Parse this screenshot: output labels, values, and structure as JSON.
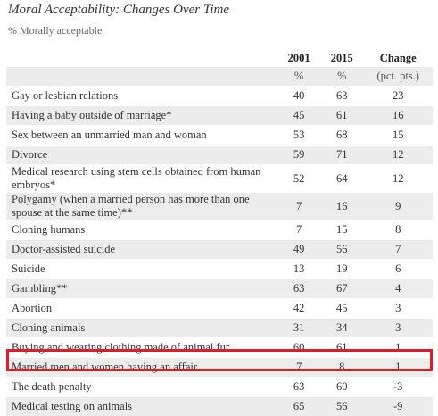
{
  "header": {
    "title": "Moral Acceptability: Changes Over Time",
    "subtitle": "% Morally acceptable"
  },
  "table": {
    "columns": [
      "2001",
      "2015",
      "Change"
    ],
    "units": [
      "%",
      "%",
      "(pct. pts.)"
    ],
    "rows": [
      [
        "Gay or lesbian relations",
        40,
        63,
        23
      ],
      [
        "Having a baby outside of marriage*",
        45,
        61,
        16
      ],
      [
        "Sex between an unmarried man and woman",
        53,
        68,
        15
      ],
      [
        "Divorce",
        59,
        71,
        12
      ],
      [
        "Medical research using stem cells obtained from human embryos*",
        52,
        64,
        12
      ],
      [
        "Polygamy (when a married person has more than one spouse at the same time)**",
        7,
        16,
        9
      ],
      [
        "Cloning humans",
        7,
        15,
        8
      ],
      [
        "Doctor-assisted suicide",
        49,
        56,
        7
      ],
      [
        "Suicide",
        13,
        19,
        6
      ],
      [
        "Gambling**",
        63,
        67,
        4
      ],
      [
        "Abortion",
        42,
        45,
        3
      ],
      [
        "Cloning animals",
        31,
        34,
        3
      ],
      [
        "Buying and wearing clothing made of animal fur",
        60,
        61,
        1
      ],
      [
        "Married men and women having an affair",
        7,
        8,
        1
      ],
      [
        "The death penalty",
        63,
        60,
        -3
      ],
      [
        "Medical testing on animals",
        65,
        56,
        -9
      ]
    ]
  }
}
